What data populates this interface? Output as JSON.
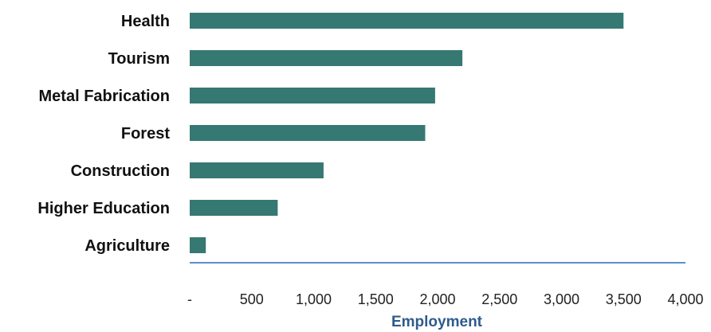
{
  "chart_data": {
    "type": "bar",
    "orientation": "horizontal",
    "categories": [
      "Health",
      "Tourism",
      "Metal Fabrication",
      "Forest",
      "Construction",
      "Higher Education",
      "Agriculture"
    ],
    "values": [
      3500,
      2200,
      1980,
      1900,
      1080,
      710,
      130
    ],
    "xlabel": "Employment",
    "ylabel": "",
    "xlim": [
      0,
      4000
    ],
    "x_ticks": [
      0,
      500,
      1000,
      1500,
      2000,
      2500,
      3000,
      3500,
      4000
    ],
    "x_tick_labels": [
      "-",
      "500",
      "1,000",
      "1,500",
      "2,000",
      "2,500",
      "3,000",
      "3,500",
      "4,000"
    ],
    "grid": false,
    "legend": "none",
    "bar_color": "#367872",
    "axis_line_color": "#5b8fd0",
    "axis_title_color": "#2f5b8c"
  }
}
